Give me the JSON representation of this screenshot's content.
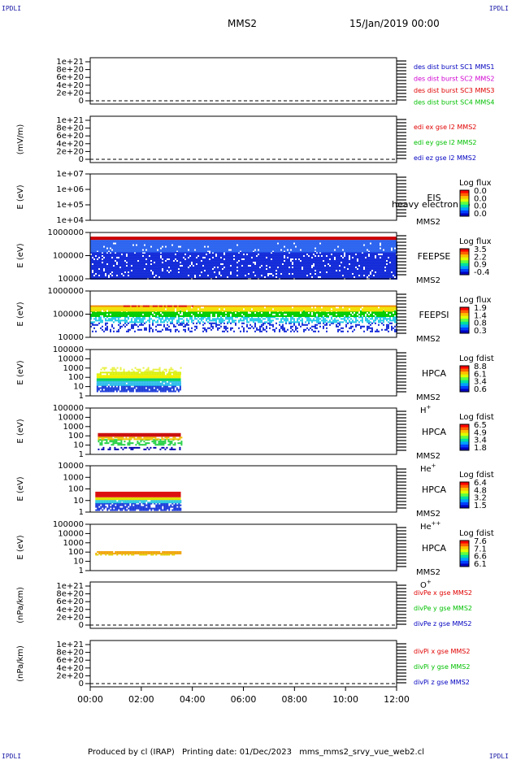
{
  "corners": {
    "tl": "IPDLI",
    "tr": "IPDLI",
    "bl": "IPDLI",
    "br": "IPDLI"
  },
  "header": {
    "spacecraft": "MMS2",
    "date": "15/Jan/2019 00:00"
  },
  "footer": {
    "produced": "Produced by cl (IRAP)",
    "printed": "Printing date: 01/Dec/2023",
    "file": "mms_mms2_srvy_vue_web2.cl"
  },
  "time_axis": {
    "range_hours": [
      0,
      12
    ],
    "ticks": [
      "00:00",
      "02:00",
      "04:00",
      "06:00",
      "08:00",
      "10:00",
      "12:00"
    ]
  },
  "colors": {
    "red": "#e00000",
    "green": "#00c000",
    "blue": "#0000c0",
    "magenta": "#d000d0"
  },
  "chart_data": [
    {
      "type": "line",
      "ylabel": "",
      "yticks": [
        "1e+21",
        "8e+20",
        "6e+20",
        "4e+20",
        "2e+20",
        "0"
      ],
      "series": [
        {
          "name": "des dist burst SC1 MMS1",
          "color": "#0000c0"
        },
        {
          "name": "des dist burst SC2 MMS2",
          "color": "#d000d0"
        },
        {
          "name": "des dist burst SC3 MMS3",
          "color": "#e00000"
        },
        {
          "name": "des dist burst SC4 MMS4",
          "color": "#00c000"
        }
      ]
    },
    {
      "type": "line",
      "ylabel": "(mV/m)",
      "yticks": [
        "1e+21",
        "8e+20",
        "6e+20",
        "4e+20",
        "2e+20",
        "0"
      ],
      "series": [
        {
          "name": "edi ex gse l2 MMS2",
          "color": "#e00000"
        },
        {
          "name": "edi ey gse l2 MMS2",
          "color": "#00c000"
        },
        {
          "name": "edi ez gse l2 MMS2",
          "color": "#0000c0"
        }
      ]
    },
    {
      "type": "heatmap",
      "ylabel": "E (eV)",
      "yticks": [
        "1e+07",
        "1e+06",
        "1e+05",
        "1e+04"
      ],
      "instrument": "EIS",
      "overlay": "heavy electron to",
      "mms": "MMS2",
      "colorbar_title": "Log flux",
      "colorbar_ticks": [
        "0.0",
        "0.0",
        "0.0",
        "0.0"
      ],
      "bands": []
    },
    {
      "type": "heatmap",
      "ylabel": "E (eV)",
      "yticks": [
        "1000000",
        "100000",
        "10000"
      ],
      "instrument": "FEEPSE",
      "mms": "MMS2",
      "colorbar_title": "Log flux",
      "colorbar_ticks": [
        "3.5",
        "2.2",
        "0.9",
        "-0.4"
      ],
      "bands": [
        {
          "t": [
            0,
            12
          ],
          "e": [
            0,
            0.58
          ],
          "color": "#1028d8",
          "dense": 0.9
        },
        {
          "t": [
            0,
            12
          ],
          "e": [
            0.58,
            0.78
          ],
          "color": "#2c64f0",
          "dense": 0.95
        },
        {
          "t": [
            0,
            12
          ],
          "e": [
            0.78,
            0.84
          ],
          "color": "#2c64f0",
          "dense": 1
        },
        {
          "t": [
            0,
            12
          ],
          "e": [
            0.84,
            0.91
          ],
          "color": "#cc0000",
          "dense": 1
        }
      ]
    },
    {
      "type": "heatmap",
      "ylabel": "E (eV)",
      "yticks": [
        "1000000",
        "100000",
        "10000"
      ],
      "instrument": "FEEPSI",
      "mms": "MMS2",
      "colorbar_title": "Log flux",
      "colorbar_ticks": [
        "1.9",
        "1.4",
        "0.8",
        "0.3"
      ],
      "bands": [
        {
          "t": [
            0,
            12
          ],
          "e": [
            0.14,
            0.32
          ],
          "color": "#1028d8",
          "dense": 0.35
        },
        {
          "t": [
            0,
            12
          ],
          "e": [
            0.32,
            0.45
          ],
          "color": "#20c8e8",
          "dense": 0.6
        },
        {
          "t": [
            0,
            12
          ],
          "e": [
            0.45,
            0.58
          ],
          "color": "#00cc00",
          "dense": 0.85
        },
        {
          "t": [
            0,
            12
          ],
          "e": [
            0.58,
            0.66
          ],
          "color": "#f0e000",
          "dense": 0.95
        },
        {
          "t": [
            0,
            12
          ],
          "e": [
            0.66,
            0.69
          ],
          "color": "#f08000",
          "dense": 1
        },
        {
          "t": [
            1.3,
            4.0
          ],
          "e": [
            0.66,
            0.69
          ],
          "color": "#dd1010",
          "dense": 0.7
        }
      ]
    },
    {
      "type": "heatmap",
      "ylabel": "E (eV)",
      "yticks": [
        "100000",
        "10000",
        "1000",
        "100",
        "10",
        "1"
      ],
      "instrument": "HPCA",
      "mms": "MMS2",
      "species": "H",
      "species_sup": "+",
      "colorbar_title": "Log fdist",
      "colorbar_ticks": [
        "8.8",
        "6.1",
        "3.4",
        "0.6"
      ],
      "bands": [
        {
          "t": [
            0.25,
            3.55
          ],
          "e": [
            0.08,
            0.22
          ],
          "color": "#1838d8",
          "dense": 0.85
        },
        {
          "t": [
            0.25,
            3.55
          ],
          "e": [
            0.22,
            0.32
          ],
          "color": "#20b8e8",
          "dense": 0.95
        },
        {
          "t": [
            0.25,
            3.55
          ],
          "e": [
            0.32,
            0.38
          ],
          "color": "#00d060",
          "dense": 1
        },
        {
          "t": [
            0.25,
            3.55
          ],
          "e": [
            0.38,
            0.45
          ],
          "color": "#f0f000",
          "dense": 1
        },
        {
          "t": [
            0.25,
            3.55
          ],
          "e": [
            0.45,
            0.52
          ],
          "color": "#d8f000",
          "dense": 0.85
        },
        {
          "t": [
            0.4,
            3.55
          ],
          "e": [
            0.52,
            0.62
          ],
          "color": "#e8f040",
          "dense": 0.35
        }
      ]
    },
    {
      "type": "heatmap",
      "ylabel": "E (eV)",
      "yticks": [
        "100000",
        "10000",
        "1000",
        "100",
        "10",
        "1"
      ],
      "instrument": "HPCA",
      "mms": "MMS2",
      "species": "He",
      "species_sup": "+",
      "colorbar_title": "Log fdist",
      "colorbar_ticks": [
        "6.5",
        "4.9",
        "3.4",
        "1.8"
      ],
      "bands": [
        {
          "t": [
            0.3,
            3.55
          ],
          "e": [
            0.09,
            0.16
          ],
          "color": "#0000b0",
          "dense": 0.35
        },
        {
          "t": [
            0.3,
            3.55
          ],
          "e": [
            0.22,
            0.33
          ],
          "color": "#20d040",
          "dense": 0.55
        },
        {
          "t": [
            0.3,
            3.55
          ],
          "e": [
            0.33,
            0.38
          ],
          "color": "#f0c000",
          "dense": 0.8
        },
        {
          "t": [
            0.3,
            3.55
          ],
          "e": [
            0.38,
            0.46
          ],
          "color": "#cc1010",
          "dense": 1
        }
      ]
    },
    {
      "type": "heatmap",
      "ylabel": "E (eV)",
      "yticks": [
        "10000",
        "1000",
        "100",
        "10",
        "1"
      ],
      "instrument": "HPCA",
      "mms": "MMS2",
      "species": "He",
      "species_sup": "++",
      "colorbar_title": "Log fdist",
      "colorbar_ticks": [
        "6.4",
        "4.8",
        "3.2",
        "1.5"
      ],
      "bands": [
        {
          "t": [
            0.2,
            3.55
          ],
          "e": [
            0.05,
            0.2
          ],
          "color": "#1030d8",
          "dense": 0.8
        },
        {
          "t": [
            0.2,
            3.55
          ],
          "e": [
            0.2,
            0.26
          ],
          "color": "#20c8e0",
          "dense": 0.9
        },
        {
          "t": [
            0.2,
            3.55
          ],
          "e": [
            0.26,
            0.32
          ],
          "color": "#e0e000",
          "dense": 1
        },
        {
          "t": [
            0.2,
            3.55
          ],
          "e": [
            0.32,
            0.44
          ],
          "color": "#dd1010",
          "dense": 1
        }
      ]
    },
    {
      "type": "heatmap",
      "ylabel": "E (eV)",
      "yticks": [
        "100000",
        "10000",
        "1000",
        "100",
        "10",
        "1"
      ],
      "instrument": "HPCA",
      "mms": "MMS2",
      "species": "O",
      "species_sup": "+",
      "colorbar_title": "Log fdist",
      "colorbar_ticks": [
        "7.6",
        "7.1",
        "6.6",
        "6.1"
      ],
      "bands": [
        {
          "t": [
            0.2,
            3.55
          ],
          "e": [
            0.36,
            0.42
          ],
          "color": "#f0a000",
          "dense": 0.95
        },
        {
          "t": [
            0.2,
            3.55
          ],
          "e": [
            0.33,
            0.36
          ],
          "color": "#e0d000",
          "dense": 0.5
        }
      ]
    },
    {
      "type": "line",
      "ylabel": "(nPa/km)",
      "yticks": [
        "1e+21",
        "8e+20",
        "6e+20",
        "4e+20",
        "2e+20",
        "0"
      ],
      "series": [
        {
          "name": "divPe x gse MMS2",
          "color": "#e00000"
        },
        {
          "name": "divPe y gse MMS2",
          "color": "#00c000"
        },
        {
          "name": "divPe z gse MMS2",
          "color": "#0000c0"
        }
      ]
    },
    {
      "type": "line",
      "ylabel": "(nPa/km)",
      "yticks": [
        "1e+21",
        "8e+20",
        "6e+20",
        "4e+20",
        "2e+20",
        "0"
      ],
      "series": [
        {
          "name": "divPi x gse MMS2",
          "color": "#e00000"
        },
        {
          "name": "divPi y gse MMS2",
          "color": "#00c000"
        },
        {
          "name": "divPi z gse MMS2",
          "color": "#0000c0"
        }
      ]
    }
  ]
}
